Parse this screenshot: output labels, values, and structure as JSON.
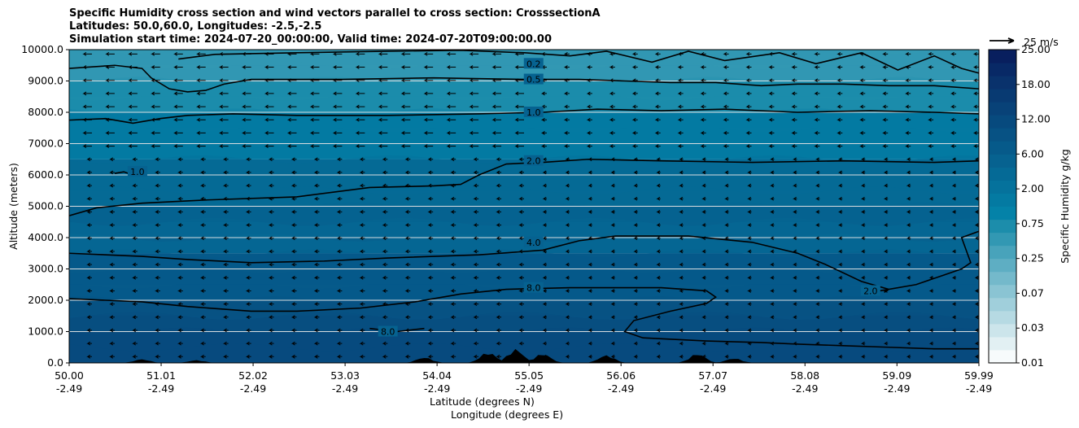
{
  "title_lines": [
    "Specific Humidity cross section and wind vectors parallel to cross section: CrosssectionA",
    "Latitudes: 50.0,60.0, Longitudes: -2.5,-2.5",
    "Simulation start time: 2024-07-20_00:00:00, Valid time: 2024-07-20T09:00:00.00"
  ],
  "chart_data": {
    "type": "heatmap",
    "description_kind": "filled contour cross section with contour lines and wind quiver",
    "ylabel": "Altitude (meters)",
    "xlabel_lines": [
      "Latitude (degrees N)",
      "Longitude (degrees E)"
    ],
    "ylim": [
      0,
      10000
    ],
    "yticks": [
      "0.0",
      "1000.0",
      "2000.0",
      "3000.0",
      "4000.0",
      "5000.0",
      "6000.0",
      "7000.0",
      "8000.0",
      "9000.0",
      "10000.0"
    ],
    "ytick_values": [
      0,
      1000,
      2000,
      3000,
      4000,
      5000,
      6000,
      7000,
      8000,
      9000,
      10000
    ],
    "xlim": [
      50.0,
      59.99
    ],
    "xticks": [
      {
        "lat": "50.00",
        "lon": "-2.49",
        "value": 50.0
      },
      {
        "lat": "51.01",
        "lon": "-2.49",
        "value": 51.01
      },
      {
        "lat": "52.02",
        "lon": "-2.49",
        "value": 52.02
      },
      {
        "lat": "53.03",
        "lon": "-2.49",
        "value": 53.03
      },
      {
        "lat": "54.04",
        "lon": "-2.49",
        "value": 54.04
      },
      {
        "lat": "55.05",
        "lon": "-2.49",
        "value": 55.05
      },
      {
        "lat": "56.06",
        "lon": "-2.49",
        "value": 56.06
      },
      {
        "lat": "57.07",
        "lon": "-2.49",
        "value": 57.07
      },
      {
        "lat": "58.08",
        "lon": "-2.49",
        "value": 58.08
      },
      {
        "lat": "59.09",
        "lon": "-2.49",
        "value": 59.09
      },
      {
        "lat": "59.99",
        "lon": "-2.49",
        "value": 59.99
      }
    ],
    "grid": "horizontal lines",
    "colorbar": {
      "label": "Specific Humidity g/kg",
      "levels": [
        0.01,
        0.02,
        0.03,
        0.05,
        0.07,
        0.1,
        0.15,
        0.25,
        0.35,
        0.5,
        0.75,
        1.0,
        1.5,
        2.0,
        3.0,
        4.0,
        6.0,
        8.0,
        12.0,
        15.0,
        18.0,
        21.0,
        25.0
      ],
      "tick_labels": [
        "0.01",
        "0.03",
        "0.07",
        "0.25",
        "0.75",
        "2.00",
        "6.00",
        "12.00",
        "18.00",
        "25.00"
      ],
      "colors": [
        "#f7fbfc",
        "#e2f0f3",
        "#cce5eb",
        "#b6dae3",
        "#a0cfdb",
        "#8ac4d3",
        "#74b9cb",
        "#5eaec3",
        "#48a3bb",
        "#3298b3",
        "#1c8dab",
        "#0482a8",
        "#047aa2",
        "#05729c",
        "#056a96",
        "#066290",
        "#065a8a",
        "#075284",
        "#074a7e",
        "#084278",
        "#083a72",
        "#09326c",
        "#082966",
        "#081f5e"
      ]
    },
    "humidity_bands_by_altitude": [
      {
        "altitude_range": [
          0,
          1000
        ],
        "q_gkg": 9.0
      },
      {
        "altitude_range": [
          1000,
          2000
        ],
        "q_gkg": 7.0
      },
      {
        "altitude_range": [
          2000,
          3500
        ],
        "q_gkg": 5.0
      },
      {
        "altitude_range": [
          3500,
          5000
        ],
        "q_gkg": 3.0
      },
      {
        "altitude_range": [
          5000,
          6500
        ],
        "q_gkg": 2.0
      },
      {
        "altitude_range": [
          6500,
          8000
        ],
        "q_gkg": 1.2
      },
      {
        "altitude_range": [
          8000,
          9000
        ],
        "q_gkg": 0.7
      },
      {
        "altitude_range": [
          9000,
          10000
        ],
        "q_gkg": 0.35
      }
    ],
    "contours": [
      {
        "level_label": "0.2",
        "label_at": {
          "lat": 55.1,
          "alt": 9550
        },
        "points": [
          [
            51.2,
            9700
          ],
          [
            51.6,
            9850
          ],
          [
            52.5,
            9900
          ],
          [
            53.5,
            9950
          ],
          [
            54.3,
            9980
          ],
          [
            55.0,
            9900
          ],
          [
            55.5,
            9800
          ],
          [
            55.9,
            9950
          ],
          [
            56.4,
            9600
          ],
          [
            56.8,
            9950
          ],
          [
            57.2,
            9650
          ],
          [
            57.8,
            9900
          ],
          [
            58.2,
            9550
          ],
          [
            58.7,
            9900
          ],
          [
            59.1,
            9350
          ],
          [
            59.5,
            9800
          ],
          [
            59.8,
            9400
          ],
          [
            59.99,
            9250
          ]
        ]
      },
      {
        "level_label": "0.5",
        "label_at": {
          "lat": 55.1,
          "alt": 9050
        },
        "points": [
          [
            50.0,
            9400
          ],
          [
            50.5,
            9500
          ],
          [
            50.8,
            9400
          ],
          [
            50.9,
            9100
          ],
          [
            51.1,
            8750
          ],
          [
            51.3,
            8650
          ],
          [
            51.5,
            8700
          ],
          [
            51.7,
            8900
          ],
          [
            52.0,
            9050
          ],
          [
            53.0,
            9050
          ],
          [
            54.0,
            9100
          ],
          [
            55.0,
            9050
          ],
          [
            55.6,
            9050
          ],
          [
            56.1,
            9000
          ],
          [
            56.6,
            8950
          ],
          [
            57.1,
            8950
          ],
          [
            57.6,
            8850
          ],
          [
            58.0,
            8900
          ],
          [
            58.5,
            8900
          ],
          [
            59.0,
            8850
          ],
          [
            59.5,
            8850
          ],
          [
            59.99,
            8750
          ]
        ]
      },
      {
        "level_label": "1.0",
        "label_at": {
          "lat": 55.1,
          "alt": 8000
        },
        "points": [
          [
            50.0,
            7750
          ],
          [
            50.4,
            7800
          ],
          [
            50.7,
            7650
          ],
          [
            51.0,
            7800
          ],
          [
            51.3,
            7900
          ],
          [
            51.8,
            7950
          ],
          [
            52.5,
            7900
          ],
          [
            53.5,
            7900
          ],
          [
            54.5,
            7950
          ],
          [
            55.2,
            8000
          ],
          [
            55.8,
            8100
          ],
          [
            56.5,
            8050
          ],
          [
            57.2,
            8100
          ],
          [
            58.0,
            8000
          ],
          [
            58.8,
            8050
          ],
          [
            59.5,
            8000
          ],
          [
            59.99,
            7950
          ]
        ]
      },
      {
        "level_label": "1.0",
        "label_at": {
          "lat": 50.75,
          "alt": 6100
        },
        "points": [
          [
            50.5,
            6050
          ],
          [
            50.6,
            6100
          ],
          [
            50.7,
            6000
          ]
        ]
      },
      {
        "level_label": "2.0",
        "label_at": {
          "lat": 55.1,
          "alt": 6450
        },
        "points": [
          [
            50.0,
            4700
          ],
          [
            50.3,
            4950
          ],
          [
            50.8,
            5100
          ],
          [
            51.5,
            5200
          ],
          [
            52.5,
            5300
          ],
          [
            53.3,
            5600
          ],
          [
            54.0,
            5650
          ],
          [
            54.3,
            5700
          ],
          [
            54.5,
            6000
          ],
          [
            54.8,
            6350
          ],
          [
            55.2,
            6400
          ],
          [
            55.7,
            6500
          ],
          [
            56.5,
            6450
          ],
          [
            57.5,
            6400
          ],
          [
            58.5,
            6450
          ],
          [
            59.5,
            6400
          ],
          [
            59.99,
            6450
          ]
        ]
      },
      {
        "level_label": "4.0",
        "label_at": {
          "lat": 55.1,
          "alt": 3850
        },
        "points": [
          [
            50.0,
            3500
          ],
          [
            50.8,
            3400
          ],
          [
            51.3,
            3300
          ],
          [
            52.0,
            3200
          ],
          [
            52.8,
            3250
          ],
          [
            53.5,
            3350
          ],
          [
            54.5,
            3450
          ],
          [
            55.2,
            3600
          ],
          [
            55.6,
            3900
          ],
          [
            56.0,
            4050
          ],
          [
            56.8,
            4050
          ],
          [
            57.5,
            3850
          ],
          [
            58.0,
            3500
          ],
          [
            58.3,
            3150
          ],
          [
            58.7,
            2600
          ],
          [
            59.0,
            2350
          ],
          [
            59.3,
            2500
          ],
          [
            59.6,
            2800
          ],
          [
            59.8,
            3000
          ],
          [
            59.9,
            3200
          ],
          [
            59.85,
            3600
          ],
          [
            59.8,
            4000
          ],
          [
            59.99,
            4200
          ]
        ]
      },
      {
        "level_label": "8.0",
        "label_at": {
          "lat": 55.1,
          "alt": 2400
        },
        "points": [
          [
            50.0,
            2050
          ],
          [
            50.8,
            1950
          ],
          [
            51.3,
            1800
          ],
          [
            52.0,
            1650
          ],
          [
            52.5,
            1650
          ],
          [
            53.2,
            1750
          ],
          [
            53.8,
            1950
          ],
          [
            54.3,
            2200
          ],
          [
            54.8,
            2350
          ],
          [
            55.5,
            2400
          ],
          [
            56.5,
            2400
          ],
          [
            57.0,
            2300
          ],
          [
            57.1,
            2100
          ],
          [
            57.0,
            1900
          ],
          [
            56.6,
            1650
          ],
          [
            56.2,
            1350
          ],
          [
            56.1,
            1000
          ],
          [
            56.3,
            800
          ],
          [
            57.0,
            700
          ],
          [
            57.6,
            650
          ],
          [
            58.0,
            600
          ],
          [
            58.5,
            550
          ],
          [
            59.0,
            500
          ],
          [
            59.5,
            450
          ],
          [
            59.99,
            450
          ]
        ]
      },
      {
        "level_label": "8.0",
        "label_at": {
          "lat": 53.5,
          "alt": 1000
        },
        "points": [
          [
            53.3,
            1100
          ],
          [
            53.6,
            1000
          ],
          [
            53.9,
            1100
          ]
        ]
      },
      {
        "level_label": "2.0",
        "label_at": {
          "lat": 58.8,
          "alt": 2300
        },
        "points": [
          [
            58.9,
            2300
          ],
          [
            59.0,
            2350
          ],
          [
            58.95,
            2250
          ]
        ]
      }
    ],
    "terrain_peaks": [
      {
        "lat": 50.8,
        "alt": 120
      },
      {
        "lat": 51.4,
        "alt": 90
      },
      {
        "lat": 53.9,
        "alt": 180
      },
      {
        "lat": 54.6,
        "alt": 350
      },
      {
        "lat": 54.9,
        "alt": 450
      },
      {
        "lat": 55.2,
        "alt": 300
      },
      {
        "lat": 55.9,
        "alt": 250
      },
      {
        "lat": 56.9,
        "alt": 300
      },
      {
        "lat": 57.3,
        "alt": 150
      }
    ],
    "quiver_key": {
      "label": "25 m/s"
    }
  }
}
